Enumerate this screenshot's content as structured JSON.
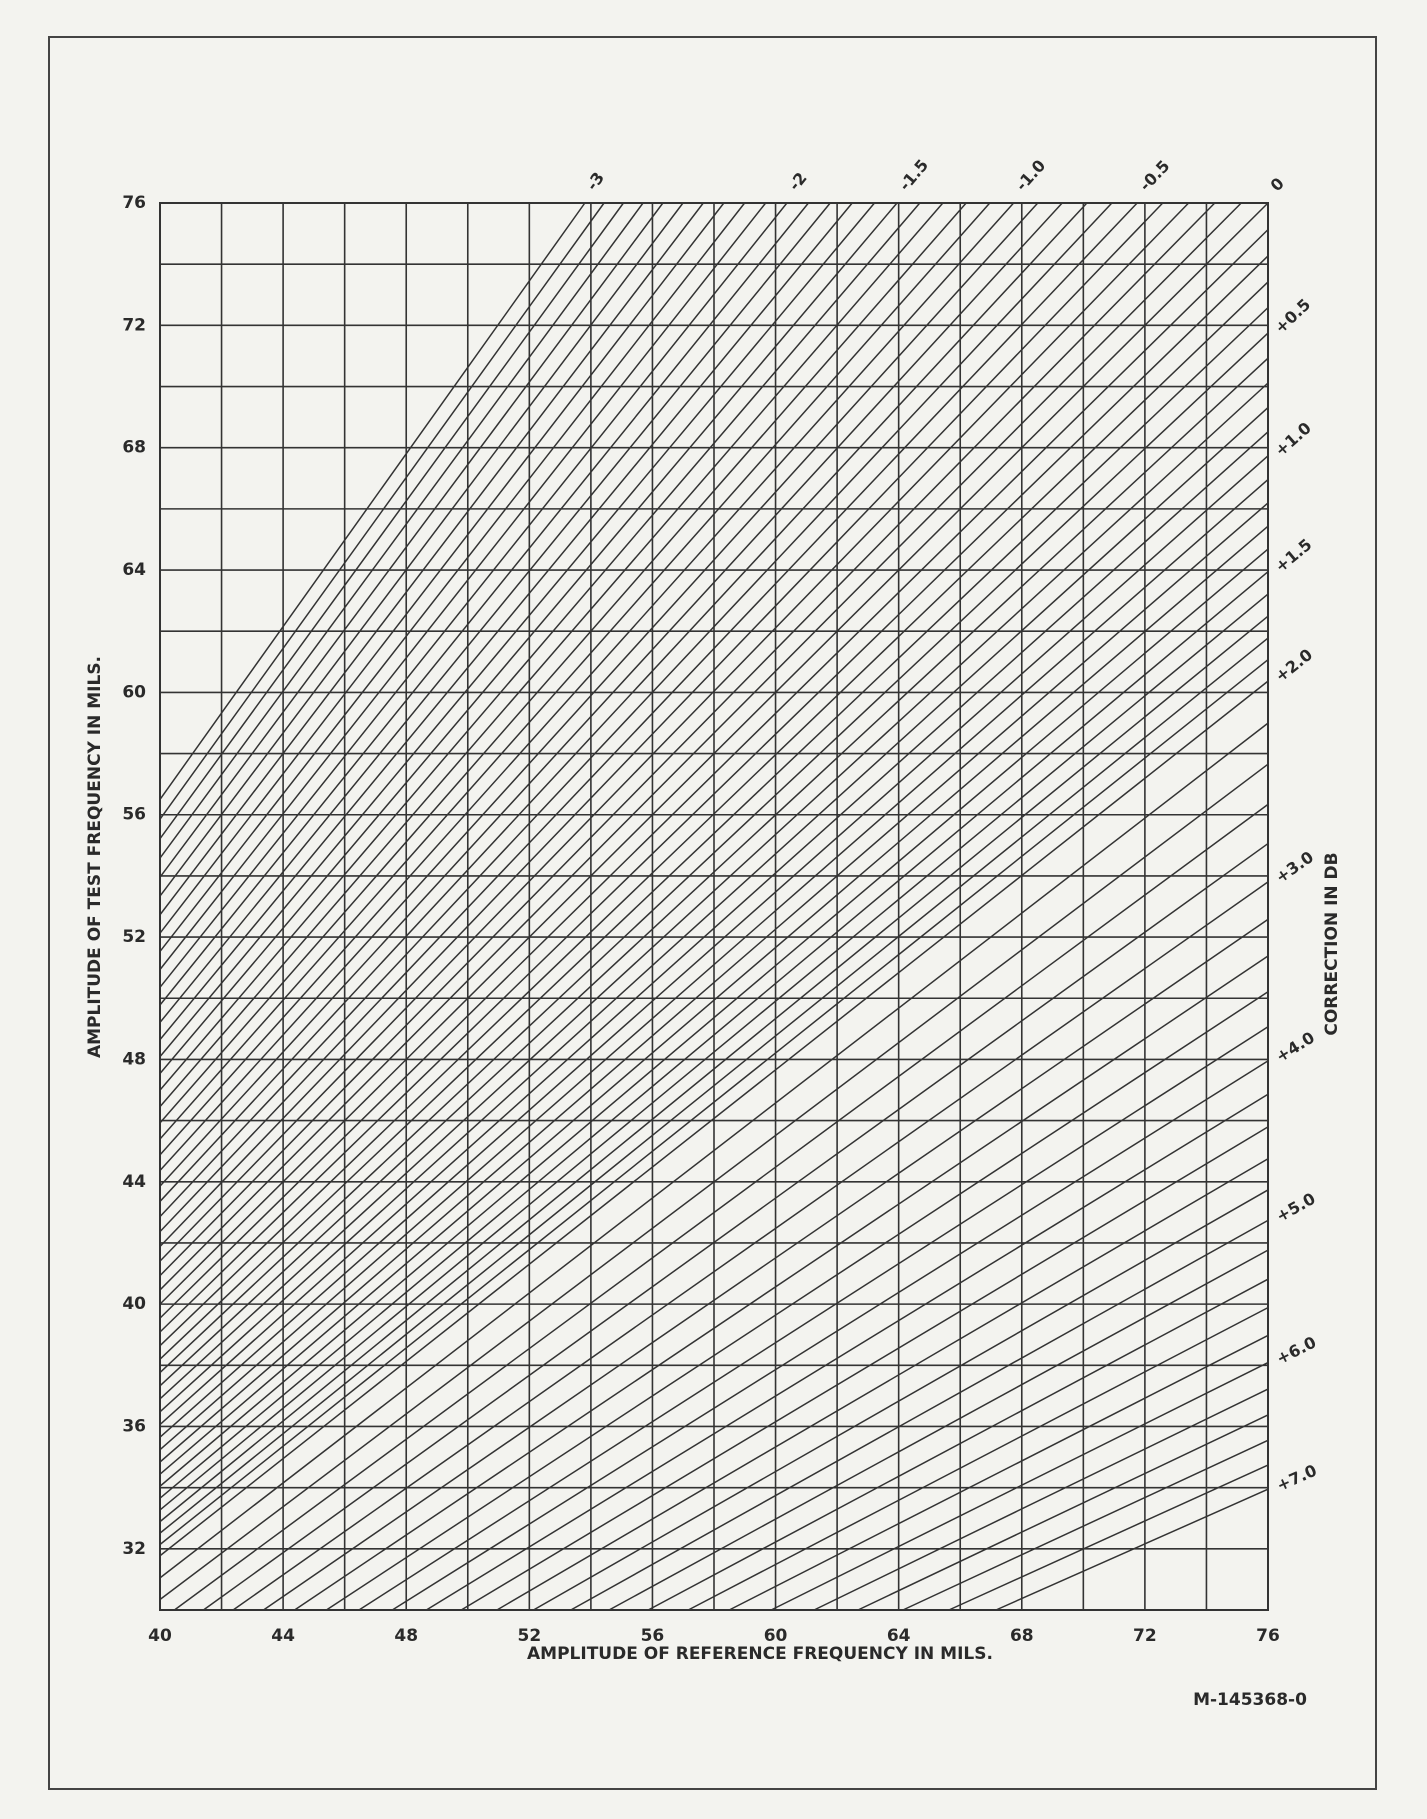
{
  "chart_data": {
    "type": "correction-lines",
    "xlabel": "AMPLITUDE OF REFERENCE FREQUENCY IN MILS.",
    "ylabel": "AMPLITUDE OF TEST FREQUENCY IN MILS.",
    "y2label": "CORRECTION IN DB",
    "drawing_number": "M-145368-0",
    "xlim": [
      40,
      76
    ],
    "ylim": [
      30,
      76
    ],
    "xticks": [
      40,
      44,
      48,
      52,
      56,
      60,
      64,
      68,
      72,
      76
    ],
    "yticks": [
      32,
      36,
      40,
      44,
      48,
      52,
      56,
      60,
      64,
      68,
      72,
      76
    ],
    "xgrid": [
      40,
      42,
      44,
      46,
      48,
      50,
      52,
      54,
      56,
      58,
      60,
      62,
      64,
      66,
      68,
      70,
      72,
      74,
      76
    ],
    "ygrid": [
      30,
      32,
      34,
      36,
      38,
      40,
      42,
      44,
      46,
      48,
      50,
      52,
      54,
      56,
      58,
      60,
      62,
      64,
      66,
      68,
      70,
      72,
      74,
      76
    ],
    "color": "#333333",
    "correction_lines": [
      -3,
      -2.9,
      -2.8,
      -2.7,
      -2.6,
      -2.5,
      -2.4,
      -2.3,
      -2.2,
      -2.1,
      -2,
      -1.9,
      -1.8,
      -1.7,
      -1.6,
      -1.5,
      -1.4,
      -1.3,
      -1.2,
      -1.1,
      -1,
      -0.9,
      -0.8,
      -0.7,
      -0.6,
      -0.5,
      -0.4,
      -0.3,
      -0.2,
      -0.1,
      0,
      0.1,
      0.2,
      0.3,
      0.4,
      0.5,
      0.6,
      0.7,
      0.8,
      0.9,
      1,
      1.1,
      1.2,
      1.3,
      1.4,
      1.5,
      1.6,
      1.7,
      1.8,
      1.9,
      2,
      2.2,
      2.4,
      2.6,
      2.8,
      3,
      3.2,
      3.4,
      3.6,
      3.8,
      4,
      4.2,
      4.4,
      4.6,
      4.8,
      5,
      5.2,
      5.4,
      5.6,
      5.8,
      6,
      6.2,
      6.4,
      6.6,
      6.8,
      7
    ],
    "correction_labels": [
      -3,
      -2,
      -1.5,
      {
        "value": -1,
        "label": "-1.0"
      },
      -0.5,
      0,
      {
        "value": 0.5,
        "label": "+0.5"
      },
      {
        "value": 1,
        "label": "+1.0"
      },
      {
        "value": 1.5,
        "label": "+1.5"
      },
      {
        "value": 2,
        "label": "+2.0"
      },
      {
        "value": 3,
        "label": "+3.0"
      },
      {
        "value": 4,
        "label": "+4.0"
      },
      {
        "value": 5,
        "label": "+5.0"
      },
      {
        "value": 6,
        "label": "+6.0"
      },
      {
        "value": 7,
        "label": "+7.0"
      }
    ]
  }
}
